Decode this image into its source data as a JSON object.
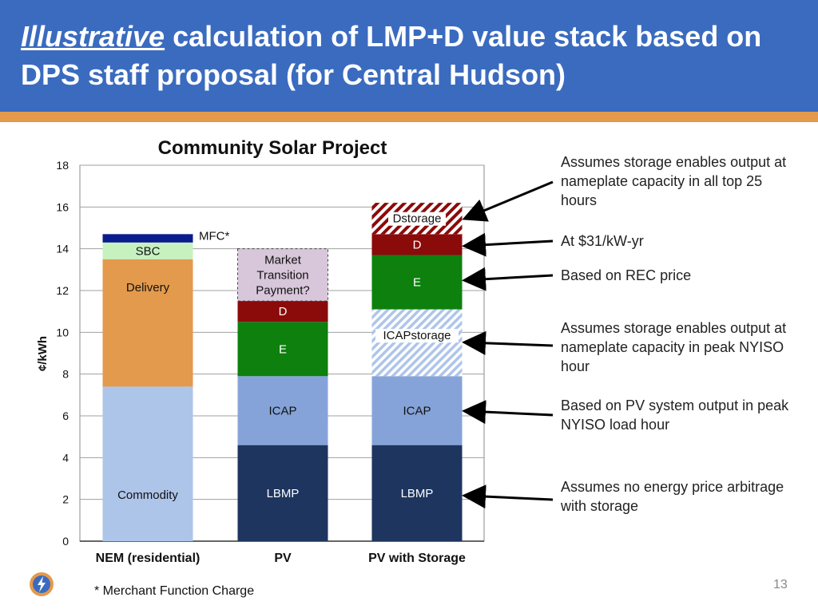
{
  "slide": {
    "title_emphasis": "Illustrative",
    "title_rest": " calculation of LMP+D value stack based on DPS staff proposal (for Central Hudson)",
    "footnote": "* Merchant Function Charge",
    "page_number": "13"
  },
  "annotations": [
    "Assumes storage enables output at nameplate capacity in all top 25 hours",
    "At $31/kW-yr",
    "Based on REC price",
    "Assumes storage enables output at nameplate capacity in peak NYISO hour",
    "Based on PV system output in peak NYISO load hour",
    "Assumes no energy price arbitrage with storage"
  ],
  "colors": {
    "header": "#3a6bbf",
    "accent": "#e39a4c",
    "commodity": "#aec5ea",
    "delivery": "#e39a4c",
    "sbc": "#c6f2c0",
    "mfc": "#0b1c8c",
    "lbmp": "#1d355f",
    "icap": "#86a3d9",
    "e": "#0d800d",
    "d": "#8b0a0a",
    "market_transition": "#d8c6da"
  },
  "chart_data": {
    "type": "bar",
    "stacked": true,
    "title": "Community Solar Project",
    "ylabel": "¢/kWh",
    "ylim": [
      0,
      18
    ],
    "yticks": [
      0,
      2,
      4,
      6,
      8,
      10,
      12,
      14,
      16,
      18
    ],
    "grid": true,
    "categories": [
      "NEM (residential)",
      "PV",
      "PV with Storage"
    ],
    "series": [
      {
        "name": "Commodity",
        "values": [
          7.4,
          0,
          0
        ],
        "color": "#aec5ea"
      },
      {
        "name": "Delivery",
        "values": [
          6.1,
          0,
          0
        ],
        "color": "#e39a4c"
      },
      {
        "name": "SBC",
        "values": [
          0.8,
          0,
          0
        ],
        "color": "#c6f2c0"
      },
      {
        "name": "MFC*",
        "values": [
          0.4,
          0,
          0
        ],
        "color": "#0b1c8c"
      },
      {
        "name": "LBMP",
        "values": [
          0,
          4.6,
          4.6
        ],
        "color": "#1d355f"
      },
      {
        "name": "ICAP",
        "values": [
          0,
          3.3,
          3.3
        ],
        "color": "#86a3d9"
      },
      {
        "name": "ICAPstorage",
        "values": [
          0,
          0,
          3.2
        ],
        "color": "#aec5ea",
        "pattern": "hatch-blue"
      },
      {
        "name": "E",
        "values": [
          0,
          2.6,
          2.6
        ],
        "color": "#0d800d"
      },
      {
        "name": "D",
        "values": [
          0,
          1.0,
          1.0
        ],
        "color": "#8b0a0a"
      },
      {
        "name": "Dstorage",
        "values": [
          0,
          0,
          1.5
        ],
        "color": "#8b0a0a",
        "pattern": "hatch-red"
      },
      {
        "name": "Market Transition Payment?",
        "values": [
          0,
          2.5,
          0
        ],
        "color": "#d8c6da",
        "dashed": true
      }
    ]
  }
}
